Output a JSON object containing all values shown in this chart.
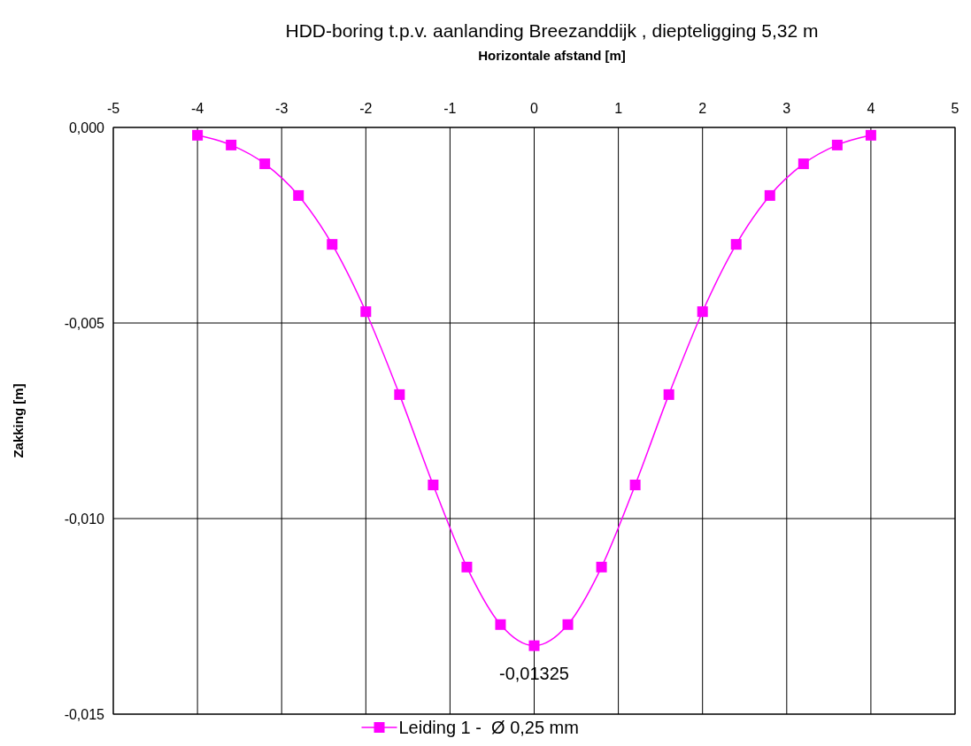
{
  "chart_data": {
    "type": "line",
    "title": "HDD-boring t.p.v. aanlanding Breezanddijk , diepteligging 5,32 m",
    "xlabel": "Horizontale afstand [m]",
    "ylabel": "Zakking [m]",
    "xlim": [
      -5,
      5
    ],
    "xticks": [
      -5,
      -4,
      -3,
      -2,
      -1,
      0,
      1,
      2,
      3,
      4,
      5
    ],
    "ylim": [
      -0.015,
      0
    ],
    "yticks": [
      {
        "value": 0,
        "label": "0,000"
      },
      {
        "value": -0.005,
        "label": "-0,005"
      },
      {
        "value": -0.01,
        "label": "-0,010"
      },
      {
        "value": -0.015,
        "label": "-0,015"
      }
    ],
    "grid": true,
    "legend": "bottom",
    "marker": "square",
    "line_style": "solid",
    "annotations": [
      {
        "text": "-0,01325",
        "x": 0,
        "y": -0.01325
      }
    ],
    "series": [
      {
        "name": "Leiding 1 -  Ø 0,25 mm",
        "color": "#ff00ff",
        "x": [
          -4,
          -3.6,
          -3.2,
          -2.8,
          -2.4,
          -2,
          -1.6,
          -1.2,
          -0.8,
          -0.4,
          0,
          0.4,
          0.8,
          1.2,
          1.6,
          2,
          2.4,
          2.8,
          3.2,
          3.6,
          4
        ],
        "values": [
          -0.0002,
          -0.00045,
          -0.00093,
          -0.00174,
          -0.00299,
          -0.00471,
          -0.00683,
          -0.00914,
          -0.01124,
          -0.01271,
          -0.01325,
          -0.01271,
          -0.01124,
          -0.00914,
          -0.00683,
          -0.00471,
          -0.00299,
          -0.00174,
          -0.00093,
          -0.00045,
          -0.0002
        ]
      }
    ]
  }
}
